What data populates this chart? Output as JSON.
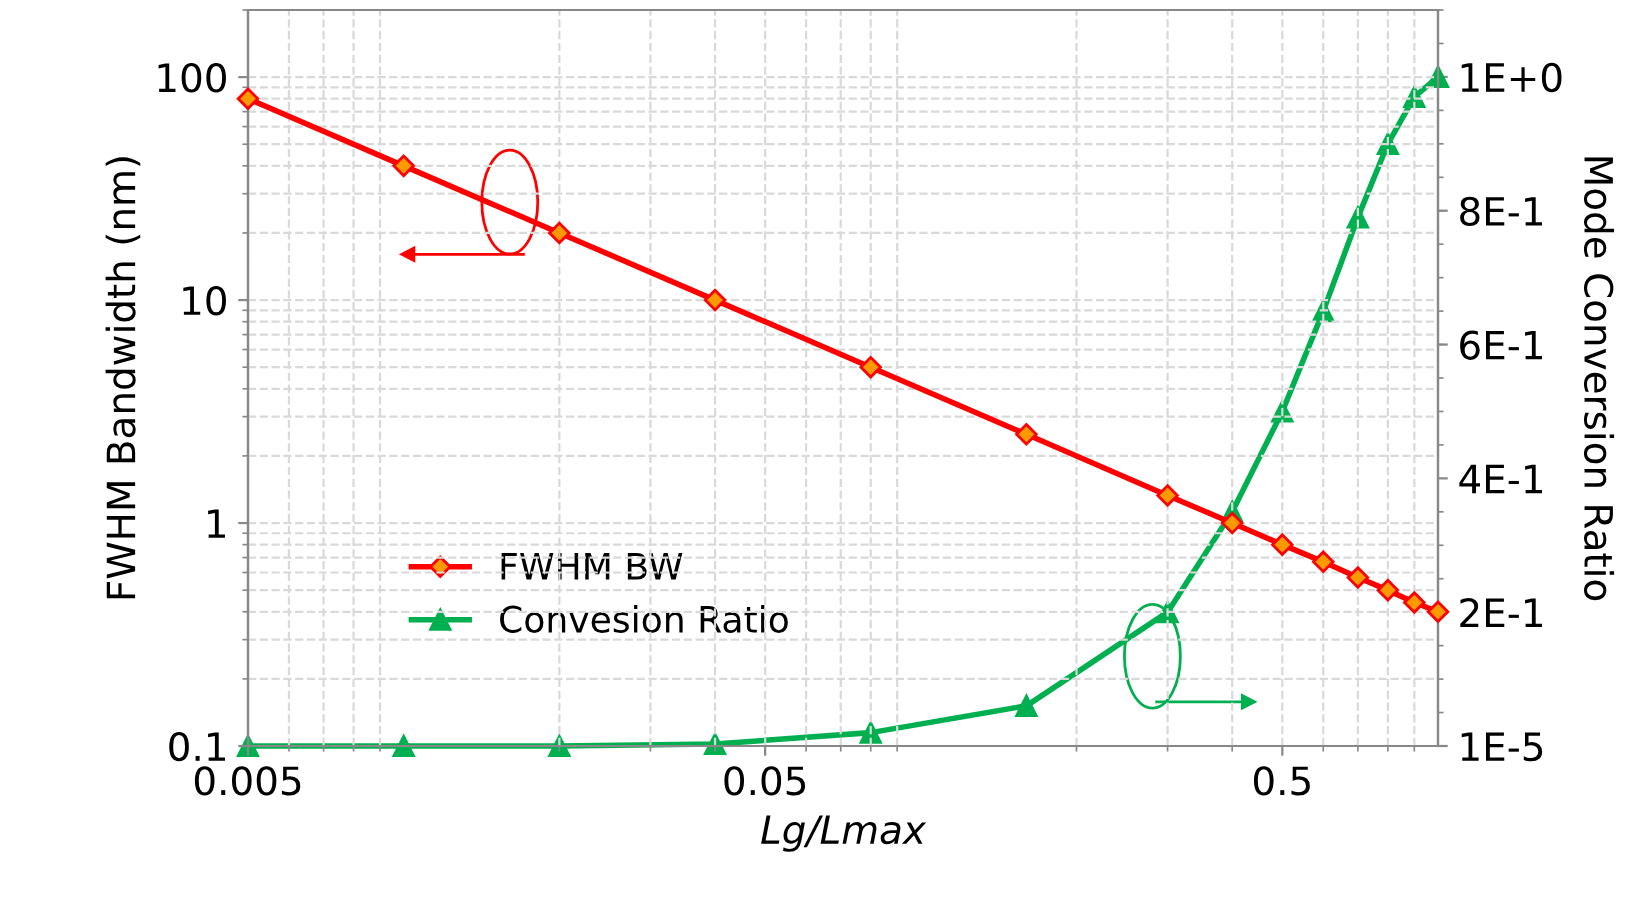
{
  "chart_data": {
    "type": "line",
    "xlabel": "Lg/Lmax",
    "ylabel": "FWHM Bandwidth (nm)",
    "y2label": "Mode Conversion Ratio",
    "x": [
      0.005,
      0.01,
      0.02,
      0.04,
      0.08,
      0.16,
      0.3,
      0.4,
      0.5,
      0.6,
      0.7,
      0.8,
      0.9,
      1.0
    ],
    "series": [
      {
        "name": "FWHM BW",
        "color": "#ff0000",
        "marker": "diamond",
        "values": [
          80,
          40,
          20,
          10,
          5,
          2.5,
          1.33,
          1.0,
          0.8,
          0.67,
          0.57,
          0.5,
          0.44,
          0.4
        ]
      },
      {
        "name": "Convesion Ratio",
        "color": "#00b050",
        "marker": "triangle",
        "axis": "y2",
        "values": [
          1e-05,
          1e-05,
          1e-05,
          0.003,
          0.02,
          0.06,
          0.2,
          0.35,
          0.5,
          0.65,
          0.79,
          0.9,
          0.97,
          1.0
        ]
      }
    ],
    "log": "xy",
    "xlim": [
      0.005,
      1.0
    ],
    "xticks": [
      0.005,
      0.05,
      0.5
    ],
    "ylim": [
      0.1,
      200
    ],
    "yticks": [
      0.1,
      1,
      10,
      100
    ],
    "y2lim": [
      1e-05,
      1.1
    ],
    "y2ticks": [
      {
        "value": 1e-05,
        "label": "1E-5"
      },
      {
        "value": 0.2,
        "label": "2E-1"
      },
      {
        "value": 0.4,
        "label": "4E-1"
      },
      {
        "value": 0.6,
        "label": "6E-1"
      },
      {
        "value": 0.8,
        "label": "8E-1"
      },
      {
        "value": 1,
        "label": "1E+0"
      }
    ],
    "grid": true,
    "legend": "bottom left"
  }
}
